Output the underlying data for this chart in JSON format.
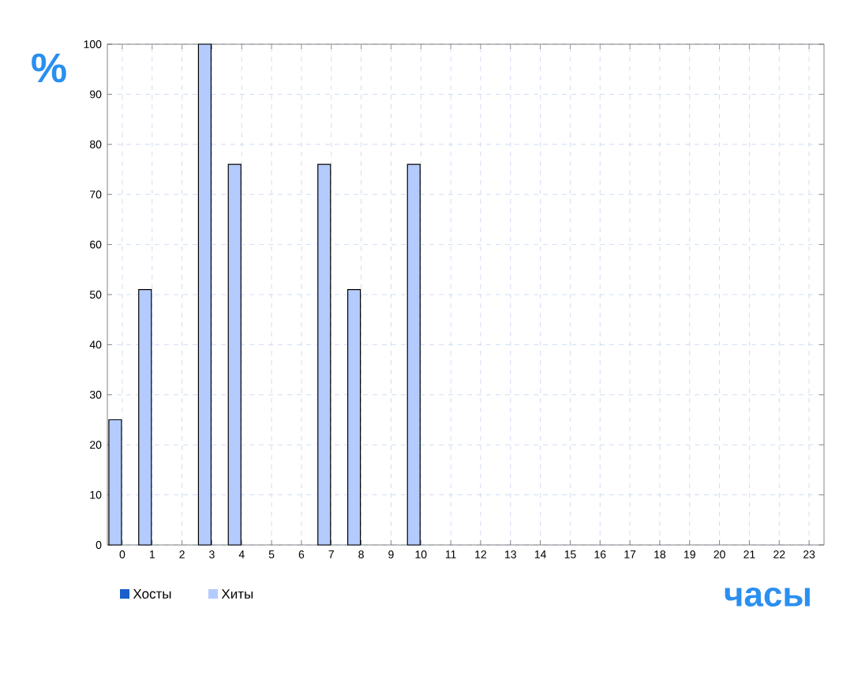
{
  "chart_data": {
    "type": "bar",
    "xlabel": "часы",
    "ylabel": "%",
    "categories": [
      "0",
      "1",
      "2",
      "3",
      "4",
      "5",
      "6",
      "7",
      "8",
      "9",
      "10",
      "11",
      "12",
      "13",
      "14",
      "15",
      "16",
      "17",
      "18",
      "19",
      "20",
      "21",
      "22",
      "23"
    ],
    "series": [
      {
        "name": "Хосты",
        "color": "#1a5fcc",
        "values": [
          null,
          null,
          null,
          null,
          null,
          null,
          null,
          null,
          null,
          null,
          null,
          null,
          null,
          null,
          null,
          null,
          null,
          null,
          null,
          null,
          null,
          null,
          null,
          null
        ]
      },
      {
        "name": "Хиты",
        "color": "#b4cbff",
        "values": [
          25,
          51,
          null,
          100,
          76,
          null,
          null,
          76,
          51,
          null,
          76,
          null,
          null,
          null,
          null,
          null,
          null,
          null,
          null,
          null,
          null,
          null,
          null,
          null
        ]
      }
    ],
    "ylim": [
      0,
      100
    ],
    "yticks": [
      0,
      10,
      20,
      30,
      40,
      50,
      60,
      70,
      80,
      90,
      100
    ],
    "grid": true,
    "legend": "bottom left"
  }
}
